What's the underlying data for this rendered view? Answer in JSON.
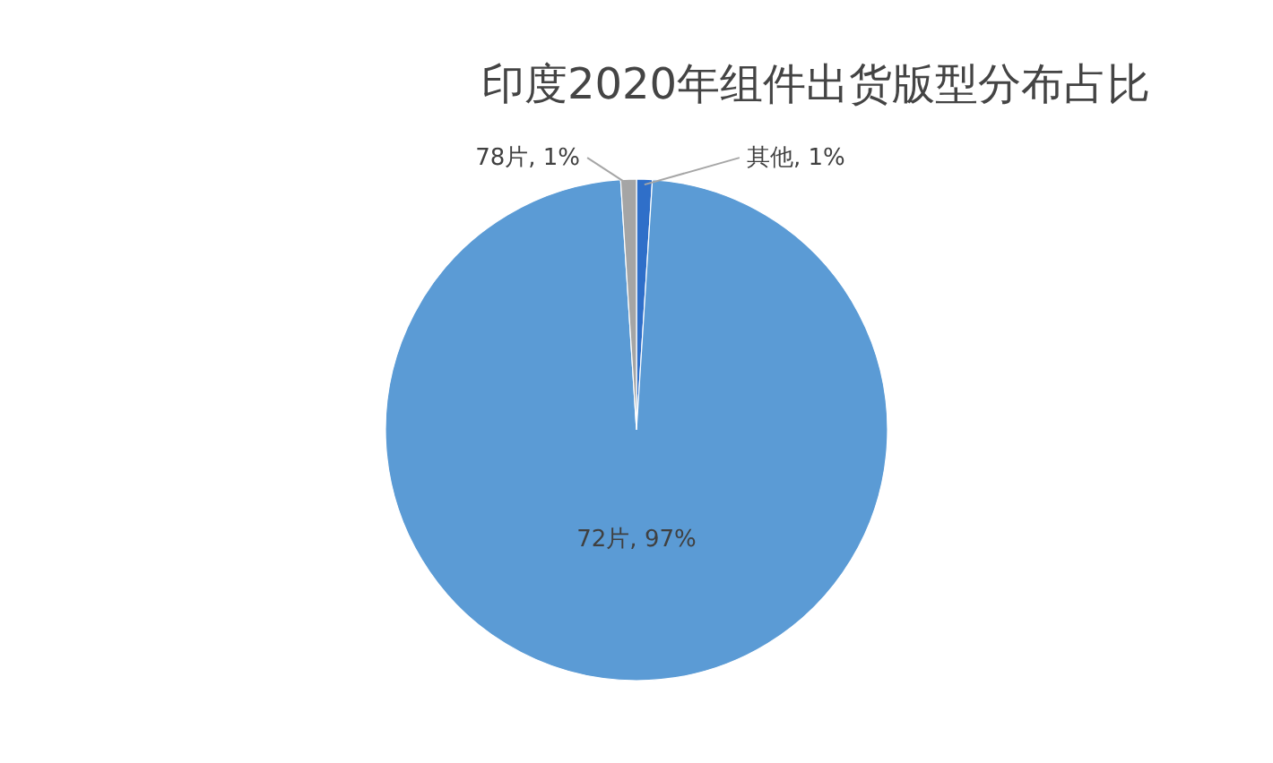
{
  "chart_data": {
    "type": "pie",
    "title": "印度2020年组件出货版型分布占比",
    "categories": [
      "其他",
      "72片",
      "78片"
    ],
    "values": [
      1,
      97,
      1
    ],
    "value_labels": [
      "1%",
      "97%",
      "1%"
    ],
    "colors": [
      "#2f6fc9",
      "#5b9bd5",
      "#a5a5a5"
    ],
    "legend": false
  }
}
